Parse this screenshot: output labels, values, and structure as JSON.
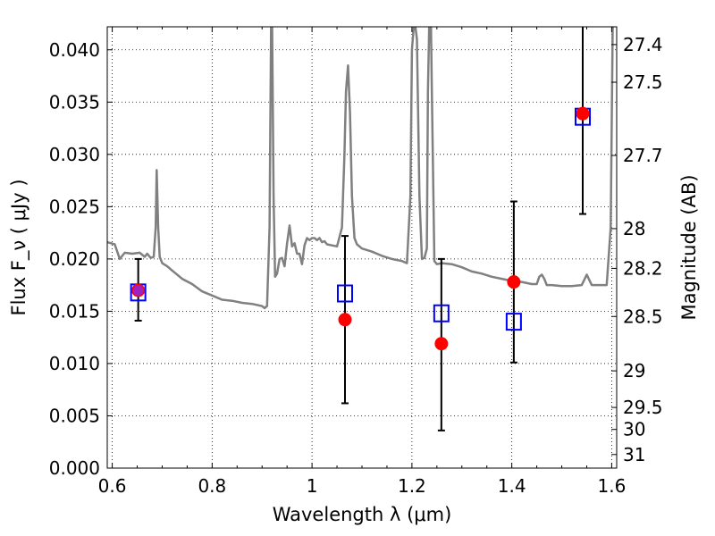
{
  "chart_data": {
    "type": "scatter",
    "title": "",
    "xlabel": "Wavelength  λ (μm)",
    "ylabel": "Flux  F_ν  ( μJy )",
    "ylabel_right": "Magnitude (AB)",
    "xlim": [
      0.59,
      1.61
    ],
    "ylim": [
      0.0,
      0.0422
    ],
    "grid": true,
    "x_ticks": [
      0.6,
      0.8,
      1.0,
      1.2,
      1.4,
      1.6
    ],
    "x_tick_labels": [
      "0.6",
      "0.8",
      "1",
      "1.2",
      "1.4",
      "1.6"
    ],
    "y_ticks": [
      0.0,
      0.005,
      0.01,
      0.015,
      0.02,
      0.025,
      0.03,
      0.035,
      0.04
    ],
    "y_tick_labels": [
      "0.000",
      "0.005",
      "0.010",
      "0.015",
      "0.020",
      "0.025",
      "0.030",
      "0.035",
      "0.040"
    ],
    "right_ticks": [
      {
        "flux": 0.0405,
        "label": "27.4"
      },
      {
        "flux": 0.0369,
        "label": "27.5"
      },
      {
        "flux": 0.0299,
        "label": "27.7"
      },
      {
        "flux": 0.0229,
        "label": "28"
      },
      {
        "flux": 0.0191,
        "label": "28.2"
      },
      {
        "flux": 0.0145,
        "label": "28.5"
      },
      {
        "flux": 0.0093,
        "label": "29"
      },
      {
        "flux": 0.0058,
        "label": "29.5"
      },
      {
        "flux": 0.0037,
        "label": "30"
      },
      {
        "flux": 0.0013,
        "label": "31"
      }
    ],
    "series": [
      {
        "kind": "spectrum",
        "color": "#808080",
        "x": [
          0.59,
          0.605,
          0.615,
          0.625,
          0.64,
          0.655,
          0.665,
          0.67,
          0.677,
          0.683,
          0.687,
          0.689,
          0.692,
          0.695,
          0.7,
          0.71,
          0.72,
          0.74,
          0.76,
          0.78,
          0.8,
          0.82,
          0.84,
          0.86,
          0.88,
          0.9,
          0.905,
          0.91,
          0.915,
          0.918,
          0.92,
          0.923,
          0.926,
          0.93,
          0.935,
          0.94,
          0.945,
          0.95,
          0.955,
          0.96,
          0.965,
          0.97,
          0.975,
          0.98,
          0.985,
          0.99,
          0.995,
          1.0,
          1.005,
          1.01,
          1.015,
          1.02,
          1.025,
          1.03,
          1.04,
          1.05,
          1.06,
          1.065,
          1.068,
          1.072,
          1.076,
          1.08,
          1.085,
          1.09,
          1.1,
          1.12,
          1.14,
          1.16,
          1.18,
          1.19,
          1.197,
          1.2,
          1.205,
          1.21,
          1.215,
          1.22,
          1.225,
          1.23,
          1.232,
          1.235,
          1.238,
          1.24,
          1.245,
          1.25,
          1.26,
          1.28,
          1.3,
          1.32,
          1.34,
          1.36,
          1.38,
          1.4,
          1.42,
          1.44,
          1.45,
          1.455,
          1.46,
          1.465,
          1.47,
          1.48,
          1.5,
          1.52,
          1.54,
          1.545,
          1.55,
          1.555,
          1.56,
          1.58,
          1.59,
          1.598,
          1.602,
          1.605,
          1.61
        ],
        "y": [
          0.0216,
          0.0214,
          0.02,
          0.0206,
          0.0205,
          0.0206,
          0.0202,
          0.0205,
          0.0201,
          0.0202,
          0.023,
          0.0285,
          0.023,
          0.0202,
          0.0196,
          0.0193,
          0.0189,
          0.0181,
          0.0176,
          0.0169,
          0.0165,
          0.0161,
          0.016,
          0.0158,
          0.0157,
          0.0155,
          0.0153,
          0.0155,
          0.023,
          0.042,
          0.043,
          0.026,
          0.0183,
          0.0186,
          0.02,
          0.0201,
          0.0193,
          0.0215,
          0.0232,
          0.0212,
          0.0215,
          0.0205,
          0.0205,
          0.0195,
          0.0213,
          0.022,
          0.0218,
          0.022,
          0.022,
          0.0218,
          0.022,
          0.0216,
          0.0217,
          0.0214,
          0.0213,
          0.0212,
          0.023,
          0.03,
          0.036,
          0.0385,
          0.034,
          0.026,
          0.022,
          0.0214,
          0.021,
          0.0207,
          0.0203,
          0.02,
          0.0198,
          0.0196,
          0.026,
          0.04,
          0.043,
          0.041,
          0.026,
          0.02,
          0.0201,
          0.021,
          0.036,
          0.043,
          0.043,
          0.036,
          0.0198,
          0.0195,
          0.0196,
          0.0195,
          0.0192,
          0.0188,
          0.0186,
          0.0183,
          0.0181,
          0.0179,
          0.0178,
          0.0176,
          0.0176,
          0.0183,
          0.0185,
          0.0181,
          0.0175,
          0.0175,
          0.0174,
          0.0174,
          0.0175,
          0.018,
          0.0185,
          0.018,
          0.0175,
          0.0175,
          0.0175,
          0.023,
          0.042,
          0.043,
          0.043
        ]
      },
      {
        "kind": "measured",
        "color": "#ff0000",
        "x": [
          0.652,
          1.066,
          1.259,
          1.404,
          1.542
        ],
        "y": [
          0.017,
          0.0142,
          0.0119,
          0.0178,
          0.0339
        ],
        "yerr_low": [
          0.0141,
          0.0062,
          0.0036,
          0.0101,
          0.0243
        ],
        "yerr_high": [
          0.02,
          0.0222,
          0.02,
          0.0255,
          0.043
        ]
      },
      {
        "kind": "model",
        "color": "#0000ff",
        "x": [
          0.652,
          1.066,
          1.259,
          1.404,
          1.542
        ],
        "y": [
          0.0168,
          0.0167,
          0.0148,
          0.014,
          0.0336
        ]
      }
    ]
  }
}
